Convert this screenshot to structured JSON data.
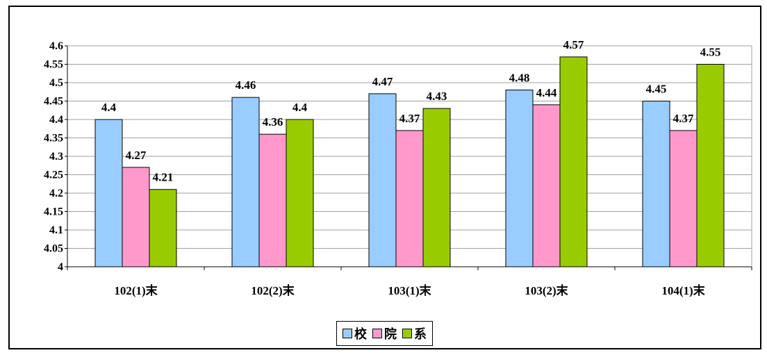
{
  "chart_data": {
    "type": "bar",
    "title": "",
    "xlabel": "",
    "ylabel": "",
    "categories": [
      "102(1)末",
      "102(2)末",
      "103(1)末",
      "103(2)末",
      "104(1)末"
    ],
    "series": [
      {
        "name": "校",
        "color": "#99ccff",
        "values": [
          4.4,
          4.46,
          4.47,
          4.48,
          4.45
        ],
        "labels": [
          "4.4",
          "4.46",
          "4.47",
          "4.48",
          "4.45"
        ]
      },
      {
        "name": "院",
        "color": "#ff99cc",
        "values": [
          4.27,
          4.36,
          4.37,
          4.44,
          4.37
        ],
        "labels": [
          "4.27",
          "4.36",
          "4.37",
          "4.44",
          "4.37"
        ]
      },
      {
        "name": "系",
        "color": "#99cc00",
        "values": [
          4.21,
          4.4,
          4.43,
          4.57,
          4.55
        ],
        "labels": [
          "4.21",
          "4.4",
          "4.43",
          "4.57",
          "4.55"
        ]
      }
    ],
    "ylim": [
      4,
      4.6
    ],
    "yticks": [
      "4",
      "4.05",
      "4.1",
      "4.15",
      "4.2",
      "4.25",
      "4.3",
      "4.35",
      "4.4",
      "4.45",
      "4.5",
      "4.55",
      "4.6"
    ],
    "grid": true,
    "legend_position": "bottom"
  }
}
